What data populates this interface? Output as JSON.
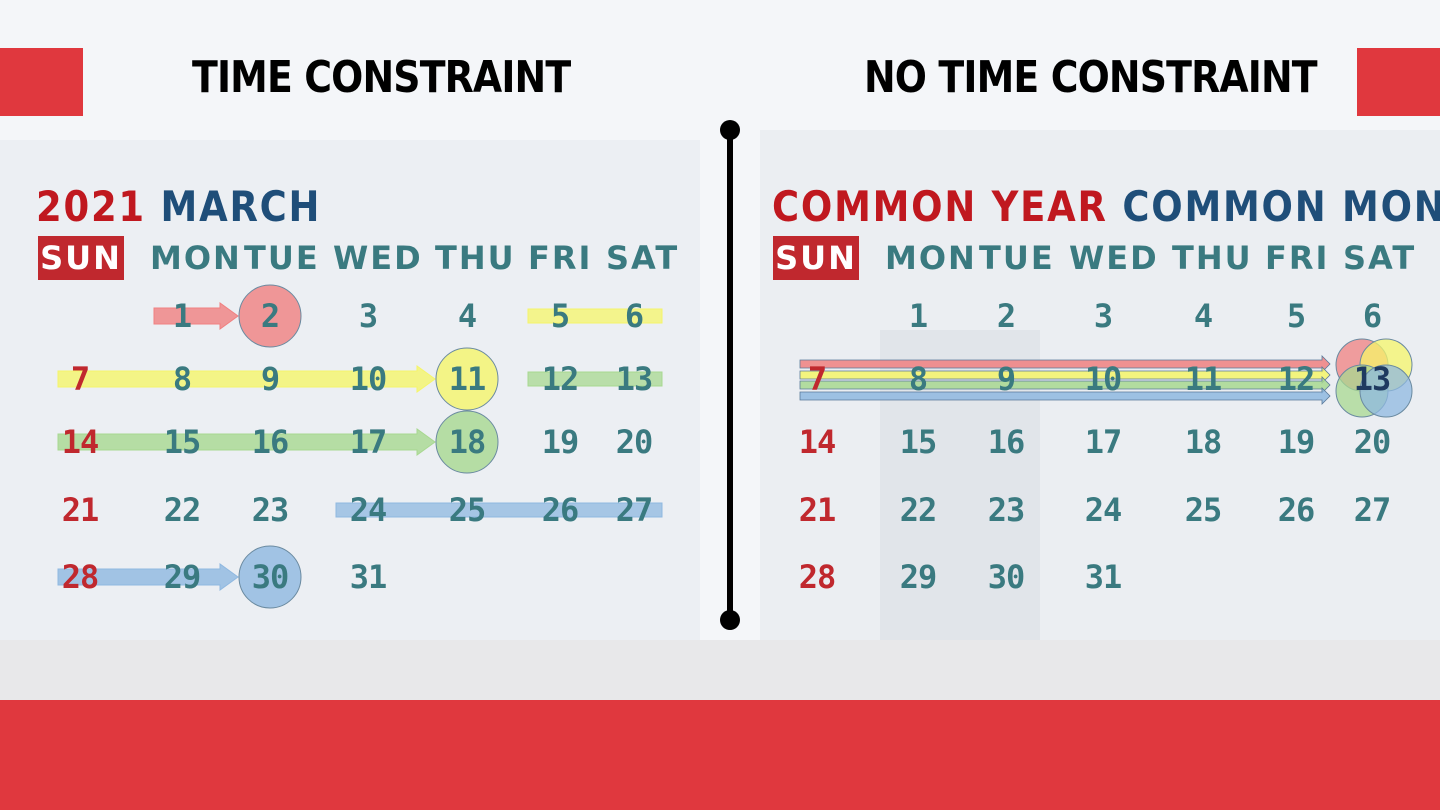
{
  "left_panel": {
    "title": "TIME CONSTRAINT",
    "year": "2021",
    "month": "MARCH"
  },
  "right_panel": {
    "title": "NO TIME CONSTRAINT",
    "year_label": "COMMON YEAR",
    "month_label": "COMMON MONTH"
  },
  "weekdays": [
    "SUN",
    "MON",
    "TUE",
    "WED",
    "THU",
    "FRI",
    "SAT"
  ],
  "calendar_weeks": [
    [
      "",
      "1",
      "2",
      "3",
      "4",
      "5",
      "6"
    ],
    [
      "7",
      "8",
      "9",
      "10",
      "11",
      "12",
      "13"
    ],
    [
      "14",
      "15",
      "16",
      "17",
      "18",
      "19",
      "20"
    ],
    [
      "21",
      "22",
      "23",
      "24",
      "25",
      "26",
      "27"
    ],
    [
      "28",
      "29",
      "30",
      "31",
      "",
      "",
      ""
    ]
  ],
  "left_highlight_groups": [
    {
      "color": "#f08080",
      "start_day": 1,
      "target_day": 2
    },
    {
      "color": "#f5f56a",
      "start_day": 5,
      "target_day": 6,
      "bar_only": true
    },
    {
      "color": "#f5f56a",
      "start_day": 7,
      "target_day": 11
    },
    {
      "color": "#a8d890",
      "start_day": 12,
      "target_day": 13,
      "bar_only": true
    },
    {
      "color": "#a8d890",
      "start_day": 14,
      "target_day": 18
    },
    {
      "color": "#8fb8e0",
      "start_day": 24,
      "target_day": 27,
      "bar_only": true
    },
    {
      "color": "#8fb8e0",
      "start_day": 28,
      "target_day": 30
    }
  ],
  "right_highlight": {
    "target_day": "13",
    "colors": [
      "#f08080",
      "#f5f56a",
      "#a8d890",
      "#8fb8e0"
    ]
  },
  "colors": {
    "accent_red": "#e0383e",
    "sunday_red": "#c0282e",
    "day_teal": "#3a7a80",
    "month_blue": "#1f4e79",
    "divider": "#000000"
  }
}
